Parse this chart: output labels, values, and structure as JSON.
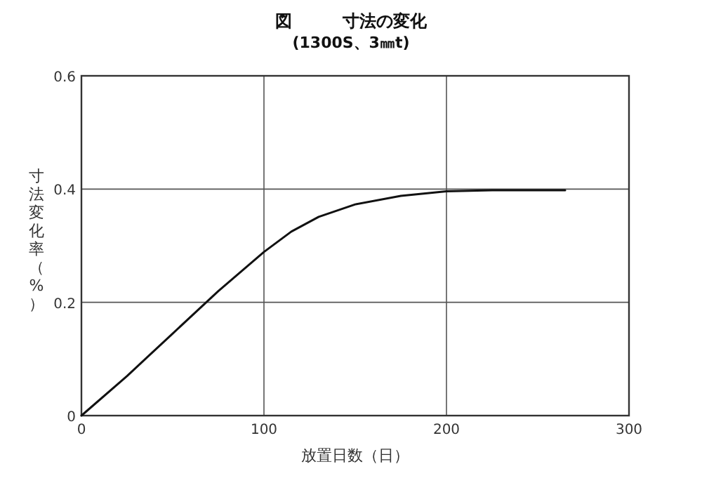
{
  "chart_data": {
    "type": "line",
    "title": "図　　　寸法の変化",
    "subtitle": "(1300S、3㎜t)",
    "xlabel": "放置日数（日）",
    "ylabel": "寸法変化率（%）",
    "x": [
      0,
      25,
      50,
      75,
      100,
      115,
      130,
      150,
      175,
      200,
      225,
      265
    ],
    "series": [
      {
        "color": "#111111",
        "values": [
          0,
          0.07,
          0.145,
          0.22,
          0.289,
          0.325,
          0.351,
          0.373,
          0.388,
          0.396,
          0.398,
          0.398
        ]
      }
    ],
    "xlim": [
      0,
      300
    ],
    "ylim": [
      0,
      0.6
    ],
    "xticks": [
      0,
      100,
      200,
      300
    ],
    "yticks": [
      0,
      {
        "value": 0.2,
        "label": "0.2"
      },
      {
        "value": 0.4,
        "label": "0.4"
      },
      {
        "value": 0.6,
        "label": "0.6"
      }
    ],
    "grid": true,
    "marker": "none",
    "line_style": "solid"
  }
}
